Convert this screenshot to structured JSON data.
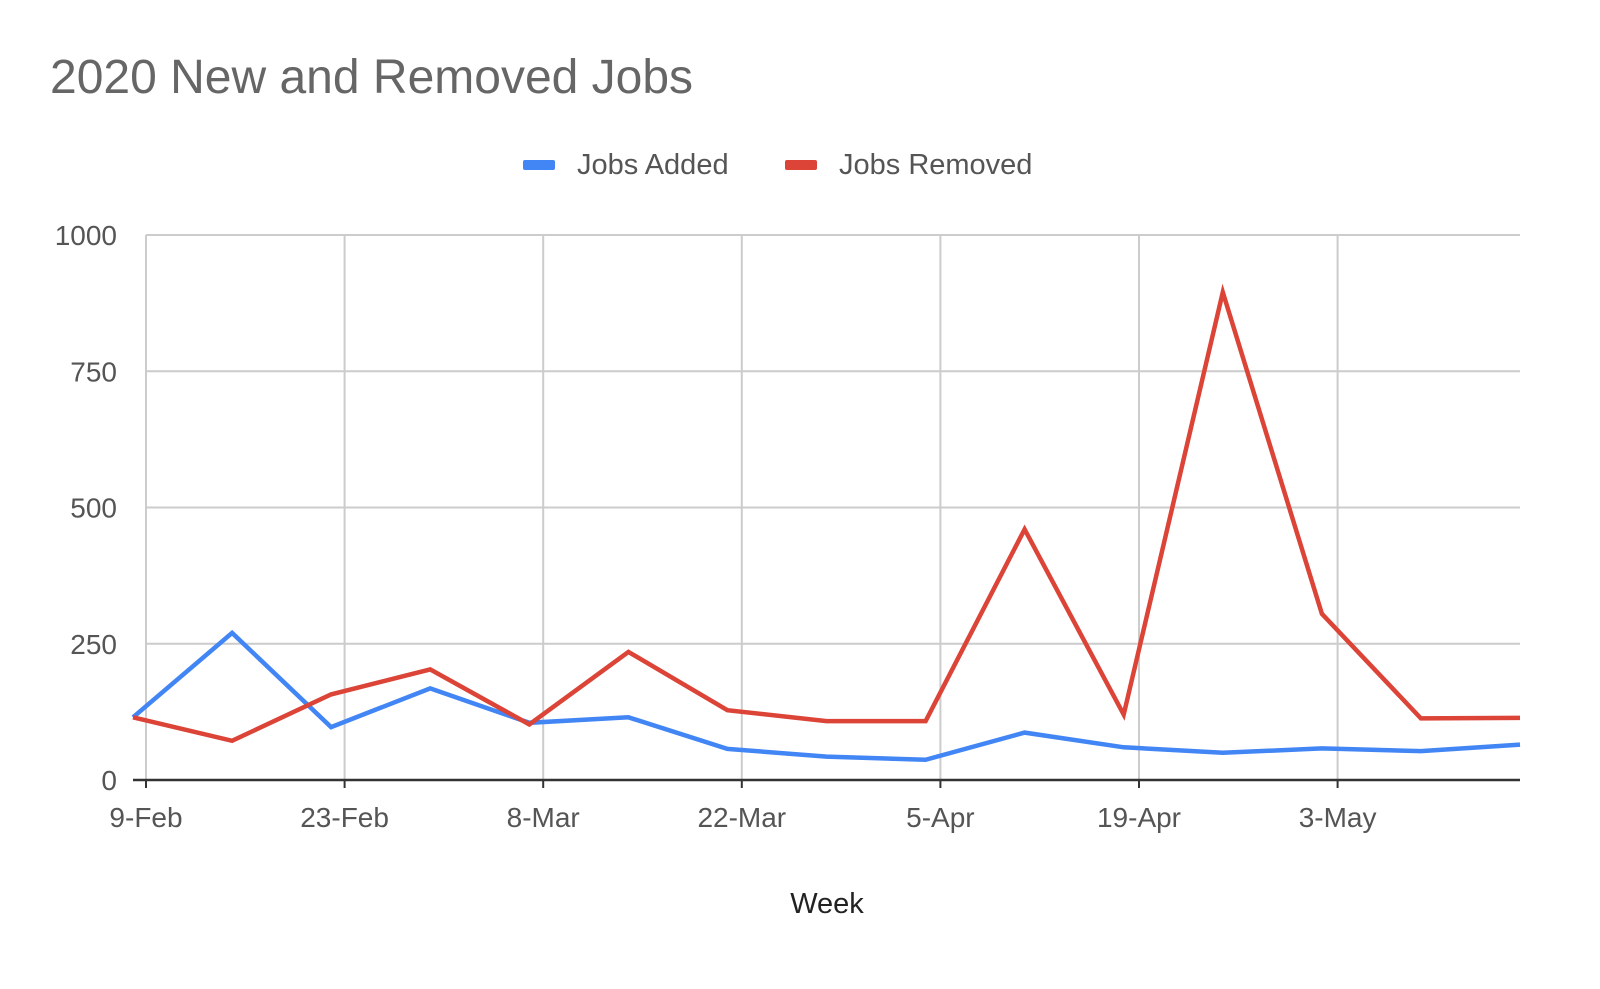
{
  "chart_data": {
    "type": "line",
    "title": "2020 New and Removed Jobs",
    "xlabel": "Week",
    "ylabel": "",
    "ylim": [
      0,
      1000
    ],
    "yticks": [
      "0",
      "250",
      "500",
      "750",
      "1000"
    ],
    "xtick_labels": [
      "9-Feb",
      "23-Feb",
      "8-Mar",
      "22-Mar",
      "5-Apr",
      "19-Apr",
      "3-May"
    ],
    "x": [
      "9-Feb",
      "16-Feb",
      "23-Feb",
      "1-Mar",
      "8-Mar",
      "15-Mar",
      "22-Mar",
      "29-Mar",
      "5-Apr",
      "12-Apr",
      "19-Apr",
      "26-Apr",
      "3-May",
      "10-May",
      "17-May"
    ],
    "series": [
      {
        "name": "Jobs Added",
        "color": "#4285f4",
        "values": [
          115,
          270,
          97,
          168,
          105,
          115,
          57,
          43,
          37,
          87,
          60,
          50,
          58,
          53,
          65
        ]
      },
      {
        "name": "Jobs Removed",
        "color": "#db4437",
        "values": [
          115,
          72,
          157,
          203,
          102,
          235,
          128,
          108,
          108,
          460,
          120,
          895,
          305,
          113,
          114
        ]
      }
    ],
    "grid": true,
    "legend_position": "top"
  }
}
